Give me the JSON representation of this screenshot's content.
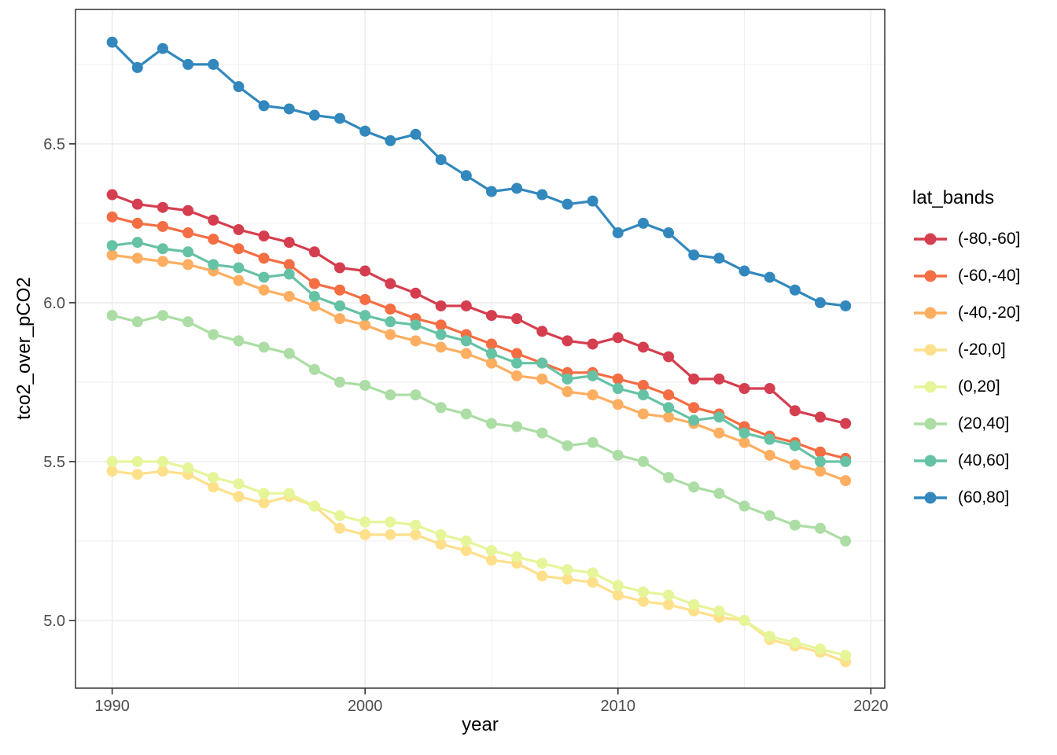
{
  "style": {
    "background": "#FFFFFF",
    "panel_border": "#333333",
    "gridline": "#EBEBEB",
    "tick_color": "#333333",
    "tick_label_color": "#4D4D4D",
    "text_color": "#000000"
  },
  "chart_data": {
    "type": "line",
    "title": "",
    "xlabel": "year",
    "ylabel": "tco2_over_pCO2",
    "grid": true,
    "legend": {
      "title": "lat_bands",
      "position": "right"
    },
    "x": [
      1990,
      1991,
      1992,
      1993,
      1994,
      1995,
      1996,
      1997,
      1998,
      1999,
      2000,
      2001,
      2002,
      2003,
      2004,
      2005,
      2006,
      2007,
      2008,
      2009,
      2010,
      2011,
      2012,
      2013,
      2014,
      2015,
      2016,
      2017,
      2018,
      2019
    ],
    "series": [
      {
        "name": "(-80,-60]",
        "color": "#D53E4F",
        "values": [
          6.34,
          6.31,
          6.3,
          6.29,
          6.26,
          6.23,
          6.21,
          6.19,
          6.16,
          6.11,
          6.1,
          6.06,
          6.03,
          5.99,
          5.99,
          5.96,
          5.95,
          5.91,
          5.88,
          5.87,
          5.89,
          5.86,
          5.83,
          5.76,
          5.76,
          5.73,
          5.73,
          5.66,
          5.64,
          5.62
        ]
      },
      {
        "name": "(-60,-40]",
        "color": "#F46D43",
        "values": [
          6.27,
          6.25,
          6.24,
          6.22,
          6.2,
          6.17,
          6.14,
          6.12,
          6.06,
          6.04,
          6.01,
          5.98,
          5.95,
          5.93,
          5.9,
          5.87,
          5.84,
          5.81,
          5.78,
          5.78,
          5.76,
          5.74,
          5.71,
          5.67,
          5.65,
          5.61,
          5.58,
          5.56,
          5.53,
          5.51
        ]
      },
      {
        "name": "(-40,-20]",
        "color": "#FDAE61",
        "values": [
          6.15,
          6.14,
          6.13,
          6.12,
          6.1,
          6.07,
          6.04,
          6.02,
          5.99,
          5.95,
          5.93,
          5.9,
          5.88,
          5.86,
          5.84,
          5.81,
          5.77,
          5.76,
          5.72,
          5.71,
          5.68,
          5.65,
          5.64,
          5.62,
          5.59,
          5.56,
          5.52,
          5.49,
          5.47,
          5.44
        ]
      },
      {
        "name": "(-20,0]",
        "color": "#FEE08B",
        "values": [
          5.47,
          5.46,
          5.47,
          5.46,
          5.42,
          5.39,
          5.37,
          5.39,
          5.36,
          5.29,
          5.27,
          5.27,
          5.27,
          5.24,
          5.22,
          5.19,
          5.18,
          5.14,
          5.13,
          5.12,
          5.08,
          5.06,
          5.05,
          5.03,
          5.01,
          5.0,
          4.94,
          4.92,
          4.9,
          4.87
        ]
      },
      {
        "name": "(0,20]",
        "color": "#E6F598",
        "values": [
          5.5,
          5.5,
          5.5,
          5.48,
          5.45,
          5.43,
          5.4,
          5.4,
          5.36,
          5.33,
          5.31,
          5.31,
          5.3,
          5.27,
          5.25,
          5.22,
          5.2,
          5.18,
          5.16,
          5.15,
          5.11,
          5.09,
          5.08,
          5.05,
          5.03,
          5.0,
          4.95,
          4.93,
          4.91,
          4.89
        ]
      },
      {
        "name": "(20,40]",
        "color": "#ABDDA4",
        "values": [
          5.96,
          5.94,
          5.96,
          5.94,
          5.9,
          5.88,
          5.86,
          5.84,
          5.79,
          5.75,
          5.74,
          5.71,
          5.71,
          5.67,
          5.65,
          5.62,
          5.61,
          5.59,
          5.55,
          5.56,
          5.52,
          5.5,
          5.45,
          5.42,
          5.4,
          5.36,
          5.33,
          5.3,
          5.29,
          5.25
        ]
      },
      {
        "name": "(40,60]",
        "color": "#66C2A5",
        "values": [
          6.18,
          6.19,
          6.17,
          6.16,
          6.12,
          6.11,
          6.08,
          6.09,
          6.02,
          5.99,
          5.96,
          5.94,
          5.93,
          5.9,
          5.88,
          5.84,
          5.81,
          5.81,
          5.76,
          5.77,
          5.73,
          5.71,
          5.67,
          5.63,
          5.64,
          5.59,
          5.57,
          5.55,
          5.5,
          5.5
        ]
      },
      {
        "name": "(60,80]",
        "color": "#3288BD",
        "values": [
          6.82,
          6.74,
          6.8,
          6.75,
          6.75,
          6.68,
          6.62,
          6.61,
          6.59,
          6.58,
          6.54,
          6.51,
          6.53,
          6.45,
          6.4,
          6.35,
          6.36,
          6.34,
          6.31,
          6.32,
          6.22,
          6.25,
          6.22,
          6.15,
          6.14,
          6.1,
          6.08,
          6.04,
          6.0,
          5.99
        ]
      }
    ],
    "axes": {
      "x": {
        "range": [
          1988.55,
          2020.55
        ],
        "major_ticks": [
          1990,
          2000,
          2010,
          2020
        ],
        "tick_labels": [
          "1990",
          "2000",
          "2010",
          "2020"
        ],
        "minor_gridlines": [
          1995,
          2005,
          2015
        ]
      },
      "y": {
        "range": [
          4.787,
          6.923
        ],
        "major_ticks": [
          5.0,
          5.5,
          6.0,
          6.5
        ],
        "tick_labels": [
          "5.0",
          "5.5",
          "6.0",
          "6.5"
        ],
        "minor_gridlines": [
          5.25,
          5.75,
          6.25,
          6.75
        ]
      }
    }
  }
}
